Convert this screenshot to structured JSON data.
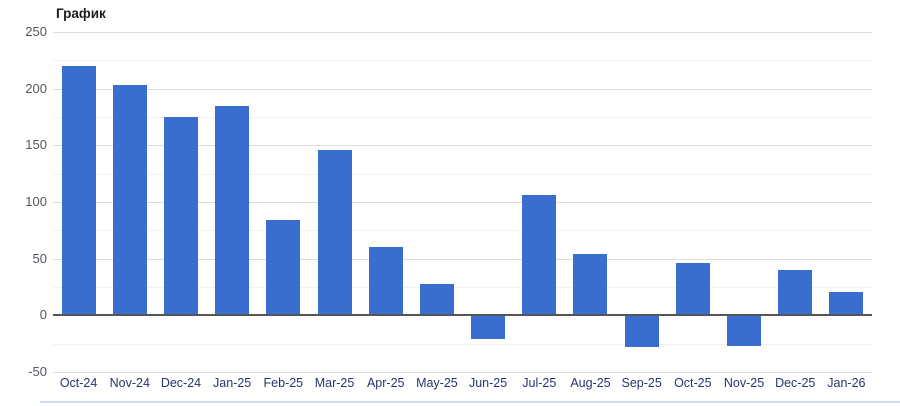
{
  "page": {
    "background": "#ffffff"
  },
  "chart_data": {
    "type": "bar",
    "title": "График",
    "categories": [
      "Oct-24",
      "Nov-24",
      "Dec-24",
      "Jan-25",
      "Feb-25",
      "Mar-25",
      "Apr-25",
      "May-25",
      "Jun-25",
      "Jul-25",
      "Aug-25",
      "Sep-25",
      "Oct-25",
      "Nov-25",
      "Dec-25",
      "Jan-26"
    ],
    "values": [
      220,
      203,
      175,
      185,
      84,
      146,
      60,
      28,
      -21,
      106,
      54,
      -28,
      46,
      -27,
      40,
      21
    ],
    "xlabel": "",
    "ylabel": "",
    "ylim": [
      -50,
      250
    ],
    "y_ticks": [
      250,
      200,
      150,
      100,
      50,
      0,
      -50
    ],
    "minor_tick_step": 25,
    "grid": "major and minor horizontal gridlines on",
    "legend": "none",
    "colors": {
      "bar": "#3B6CD0",
      "grid_major": "#dcdcdc",
      "grid_minor": "#f2f2f2",
      "zero_axis": "#555555",
      "y_label": "#55555f",
      "x_label": "#27356e",
      "title": "#1b1b1b",
      "bottom_line": "#c9d9f4"
    }
  }
}
